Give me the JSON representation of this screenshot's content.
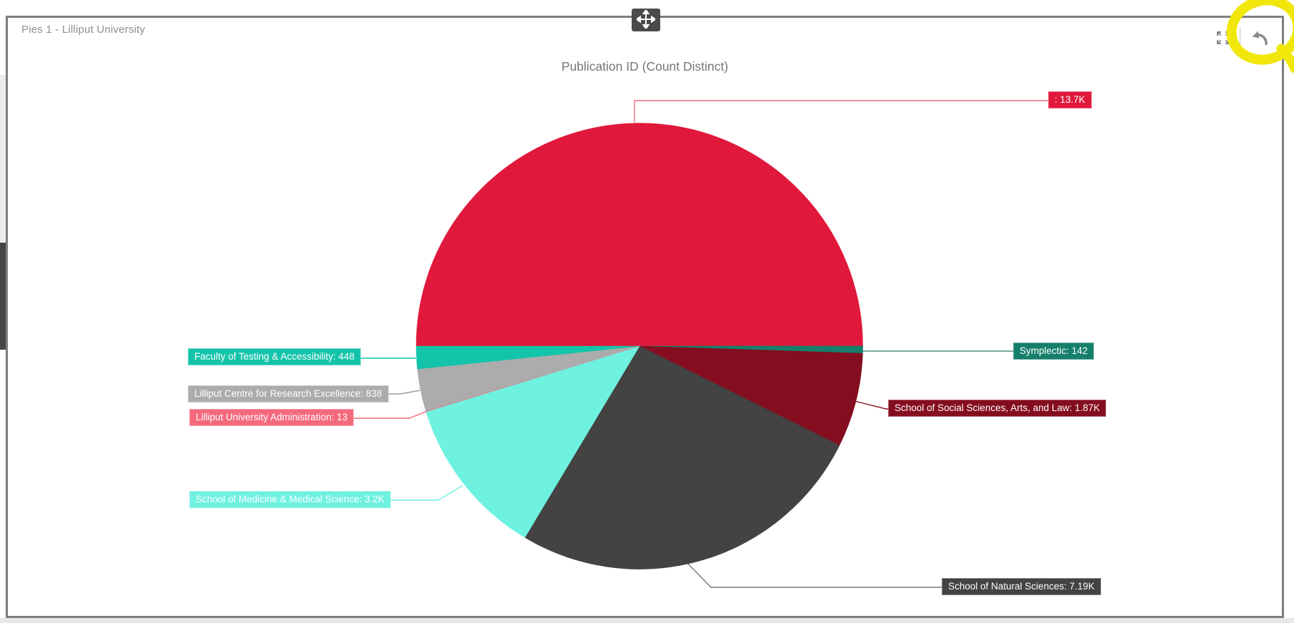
{
  "window": {
    "title": "Pies 1 - Lilliput University"
  },
  "icons": {
    "move": "move-icon",
    "expand": "expand-icon",
    "undo": "undo-icon"
  },
  "annotation": {
    "type": "highlighter-ellipse",
    "color": "#F1E70B",
    "target": "undo-button"
  },
  "chart_data": {
    "type": "pie",
    "title": "Publication ID (Count Distinct)",
    "start_angle_deg": 270,
    "direction": "clockwise",
    "total": 27401,
    "legend_position": "none",
    "slices": [
      {
        "name": "",
        "value": 13700,
        "display": ": 13.7K",
        "color": "#E0183B",
        "leader_color": "#EC6D83"
      },
      {
        "name": "Symplectic",
        "value": 142,
        "display": "Symplectic: 142",
        "color": "#157F6B",
        "leader_color": "#4E9487"
      },
      {
        "name": "School of Social Sciences, Arts, and Law",
        "value": 1870,
        "display": "School of Social Sciences, Arts, and Law: 1.87K",
        "color": "#850D20",
        "leader_color": "#850D20"
      },
      {
        "name": "School of Natural Sciences",
        "value": 7190,
        "display": "School of Natural Sciences: 7.19K",
        "color": "#434343",
        "leader_color": "#777777"
      },
      {
        "name": "School of Medicine & Medical Science",
        "value": 3200,
        "display": "School of Medicine & Medical Science: 3.2K",
        "color": "#6FF1E0",
        "leader_color": "#6FF1E0"
      },
      {
        "name": "Lilliput University Administration",
        "value": 13,
        "display": "Lilliput University Administration: 13",
        "color": "#F4697C",
        "leader_color": "#F4697C"
      },
      {
        "name": "Lilliput Centre for Research Excellence",
        "value": 838,
        "display": "Lilliput Centre for Research Excellence: 838",
        "color": "#ACACAC",
        "leader_color": "#9A9A9A"
      },
      {
        "name": "Faculty of Testing & Accessibility",
        "value": 448,
        "display": "Faculty of Testing & Accessibility: 448",
        "color": "#14C4AA",
        "leader_color": "#14C4AA"
      }
    ]
  }
}
